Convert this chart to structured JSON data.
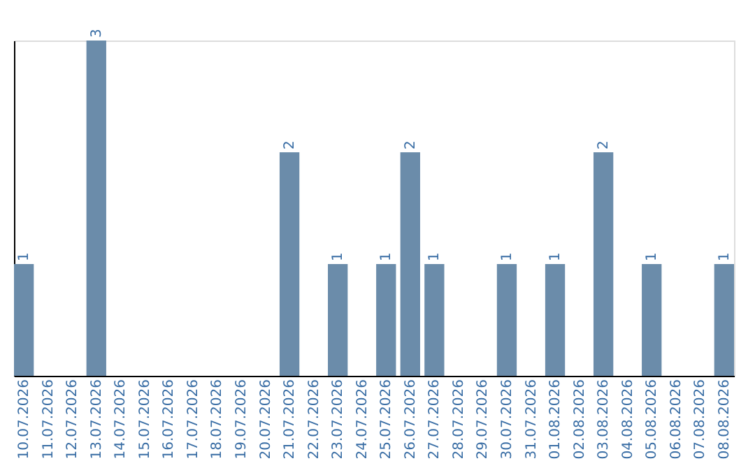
{
  "chart_data": {
    "type": "bar",
    "categories": [
      "10.07.2026",
      "11.07.2026",
      "12.07.2026",
      "13.07.2026",
      "14.07.2026",
      "15.07.2026",
      "16.07.2026",
      "17.07.2026",
      "18.07.2026",
      "19.07.2026",
      "20.07.2026",
      "21.07.2026",
      "22.07.2026",
      "23.07.2026",
      "24.07.2026",
      "25.07.2026",
      "26.07.2026",
      "27.07.2026",
      "28.07.2026",
      "29.07.2026",
      "30.07.2026",
      "31.07.2026",
      "01.08.2026",
      "02.08.2026",
      "03.08.2026",
      "04.08.2026",
      "05.08.2026",
      "06.08.2026",
      "07.08.2026",
      "08.08.2026"
    ],
    "values": [
      1,
      0,
      0,
      3,
      0,
      0,
      0,
      0,
      0,
      0,
      0,
      2,
      0,
      1,
      0,
      1,
      2,
      1,
      0,
      0,
      1,
      0,
      1,
      0,
      2,
      0,
      1,
      0,
      0,
      1
    ],
    "value_labels": [
      "1",
      null,
      null,
      "3",
      null,
      null,
      null,
      null,
      null,
      null,
      null,
      "2",
      null,
      "1",
      null,
      "1",
      "2",
      "1",
      null,
      null,
      "1",
      null,
      "1",
      null,
      "2",
      null,
      "1",
      null,
      null,
      "1"
    ],
    "color": "#6b8caa",
    "ylim": [
      0,
      3
    ],
    "tick_labels": "x",
    "grid": false
  }
}
